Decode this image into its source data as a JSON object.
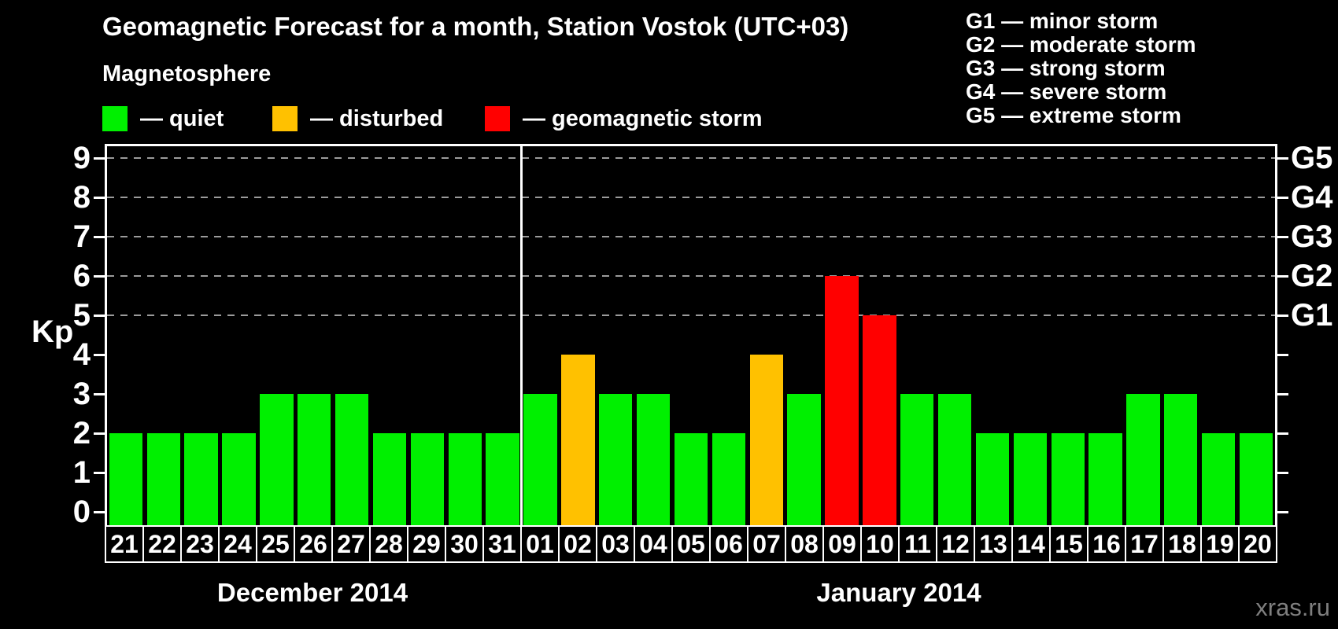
{
  "title": "Geomagnetic Forecast for a month, Station Vostok (UTC+03)",
  "subtitle": "Magnetosphere",
  "legend": {
    "quiet": "— quiet",
    "disturbed": "— disturbed",
    "storm": "— geomagnetic storm"
  },
  "g_legend": [
    "G1 — minor storm",
    "G2 — moderate storm",
    "G3 — strong storm",
    "G4 — severe storm",
    "G5 — extreme storm"
  ],
  "watermark": "xras.ru",
  "colors": {
    "quiet": "#00f000",
    "disturbed": "#ffc100",
    "storm": "#ff0000",
    "axis": "#ffffff",
    "grid": "#9b9b9b",
    "watermark": "#7f7f7f",
    "background": "#000000"
  },
  "chart_data": {
    "type": "bar",
    "title": "Geomagnetic Forecast for a month, Station Vostok (UTC+03)",
    "ylabel": "Kp",
    "ylim": [
      0,
      9
    ],
    "yticks": [
      0,
      1,
      2,
      3,
      4,
      5,
      6,
      7,
      8,
      9
    ],
    "gridlines_at_kp": [
      5,
      6,
      7,
      8,
      9
    ],
    "grid": "dashed, only at G-storm levels Kp 5-9",
    "legend_position": "top-left",
    "right_axis": [
      {
        "kp": 5,
        "label": "G1"
      },
      {
        "kp": 6,
        "label": "G2"
      },
      {
        "kp": 7,
        "label": "G3"
      },
      {
        "kp": 8,
        "label": "G4"
      },
      {
        "kp": 9,
        "label": "G5"
      }
    ],
    "months": [
      {
        "label": "December 2014",
        "days": [
          {
            "day": "21",
            "kp": 2,
            "status": "quiet"
          },
          {
            "day": "22",
            "kp": 2,
            "status": "quiet"
          },
          {
            "day": "23",
            "kp": 2,
            "status": "quiet"
          },
          {
            "day": "24",
            "kp": 2,
            "status": "quiet"
          },
          {
            "day": "25",
            "kp": 3,
            "status": "quiet"
          },
          {
            "day": "26",
            "kp": 3,
            "status": "quiet"
          },
          {
            "day": "27",
            "kp": 3,
            "status": "quiet"
          },
          {
            "day": "28",
            "kp": 2,
            "status": "quiet"
          },
          {
            "day": "29",
            "kp": 2,
            "status": "quiet"
          },
          {
            "day": "30",
            "kp": 2,
            "status": "quiet"
          },
          {
            "day": "31",
            "kp": 2,
            "status": "quiet"
          }
        ]
      },
      {
        "label": "January 2014",
        "days": [
          {
            "day": "01",
            "kp": 3,
            "status": "quiet"
          },
          {
            "day": "02",
            "kp": 4,
            "status": "disturbed"
          },
          {
            "day": "03",
            "kp": 3,
            "status": "quiet"
          },
          {
            "day": "04",
            "kp": 3,
            "status": "quiet"
          },
          {
            "day": "05",
            "kp": 2,
            "status": "quiet"
          },
          {
            "day": "06",
            "kp": 2,
            "status": "quiet"
          },
          {
            "day": "07",
            "kp": 4,
            "status": "disturbed"
          },
          {
            "day": "08",
            "kp": 3,
            "status": "quiet"
          },
          {
            "day": "09",
            "kp": 6,
            "status": "storm"
          },
          {
            "day": "10",
            "kp": 5,
            "status": "storm"
          },
          {
            "day": "11",
            "kp": 3,
            "status": "quiet"
          },
          {
            "day": "12",
            "kp": 3,
            "status": "quiet"
          },
          {
            "day": "13",
            "kp": 2,
            "status": "quiet"
          },
          {
            "day": "14",
            "kp": 2,
            "status": "quiet"
          },
          {
            "day": "15",
            "kp": 2,
            "status": "quiet"
          },
          {
            "day": "16",
            "kp": 2,
            "status": "quiet"
          },
          {
            "day": "17",
            "kp": 3,
            "status": "quiet"
          },
          {
            "day": "18",
            "kp": 3,
            "status": "quiet"
          },
          {
            "day": "19",
            "kp": 2,
            "status": "quiet"
          },
          {
            "day": "20",
            "kp": 2,
            "status": "quiet"
          }
        ]
      }
    ]
  }
}
